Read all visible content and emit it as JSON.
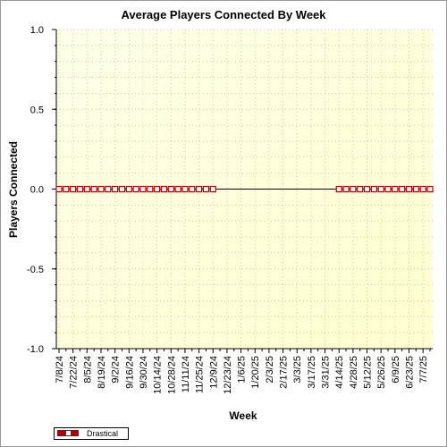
{
  "chart_data": {
    "type": "line",
    "title": "Average Players Connected By Week",
    "xlabel": "Week",
    "ylabel": "Players Connected",
    "ylim": [
      -1.0,
      1.0
    ],
    "yticks": [
      "1.0",
      "0.5",
      "0.0",
      "-0.5",
      "-1.0"
    ],
    "x_tick_labels": [
      "7/8/24",
      "7/22/24",
      "8/5/24",
      "8/19/24",
      "9/2/24",
      "9/16/24",
      "9/30/24",
      "10/14/24",
      "10/28/24",
      "11/11/24",
      "11/25/24",
      "12/9/24",
      "12/23/24",
      "1/6/25",
      "1/20/25",
      "2/3/25",
      "2/17/25",
      "3/3/25",
      "3/17/25",
      "3/31/25",
      "4/14/25",
      "4/28/25",
      "5/12/25",
      "5/26/25",
      "6/9/25",
      "6/23/25",
      "7/7/25"
    ],
    "x": [
      "7/8/24",
      "7/15/24",
      "7/22/24",
      "7/29/24",
      "8/5/24",
      "8/12/24",
      "8/19/24",
      "8/26/24",
      "9/2/24",
      "9/9/24",
      "9/16/24",
      "9/23/24",
      "9/30/24",
      "10/7/24",
      "10/14/24",
      "10/21/24",
      "10/28/24",
      "11/4/24",
      "11/11/24",
      "11/18/24",
      "11/25/24",
      "12/2/24",
      "12/9/24",
      "12/16/24",
      "12/23/24",
      "12/30/24",
      "1/6/25",
      "1/13/25",
      "1/20/25",
      "1/27/25",
      "2/3/25",
      "2/10/25",
      "2/17/25",
      "2/24/25",
      "3/3/25",
      "3/10/25",
      "3/17/25",
      "3/24/25",
      "3/31/25",
      "4/7/25",
      "4/14/25",
      "4/21/25",
      "4/28/25",
      "5/5/25",
      "5/12/25",
      "5/19/25",
      "5/26/25",
      "6/2/25",
      "6/9/25",
      "6/16/25",
      "6/23/25",
      "6/30/25",
      "7/7/25",
      "7/14/25"
    ],
    "series": [
      {
        "name": "Drastical",
        "color": "#b30000",
        "values": [
          0,
          0,
          0,
          0,
          0,
          0,
          0,
          0,
          0,
          0,
          0,
          0,
          0,
          0,
          0,
          0,
          0,
          0,
          0,
          0,
          0,
          0,
          0,
          null,
          null,
          null,
          null,
          null,
          null,
          null,
          null,
          null,
          null,
          null,
          null,
          null,
          null,
          null,
          null,
          null,
          0,
          0,
          0,
          0,
          0,
          0,
          0,
          0,
          0,
          0,
          0,
          0,
          0,
          0
        ]
      }
    ],
    "grid": true,
    "legend_position": "bottom-left",
    "plot_background": "#ffffe0"
  }
}
